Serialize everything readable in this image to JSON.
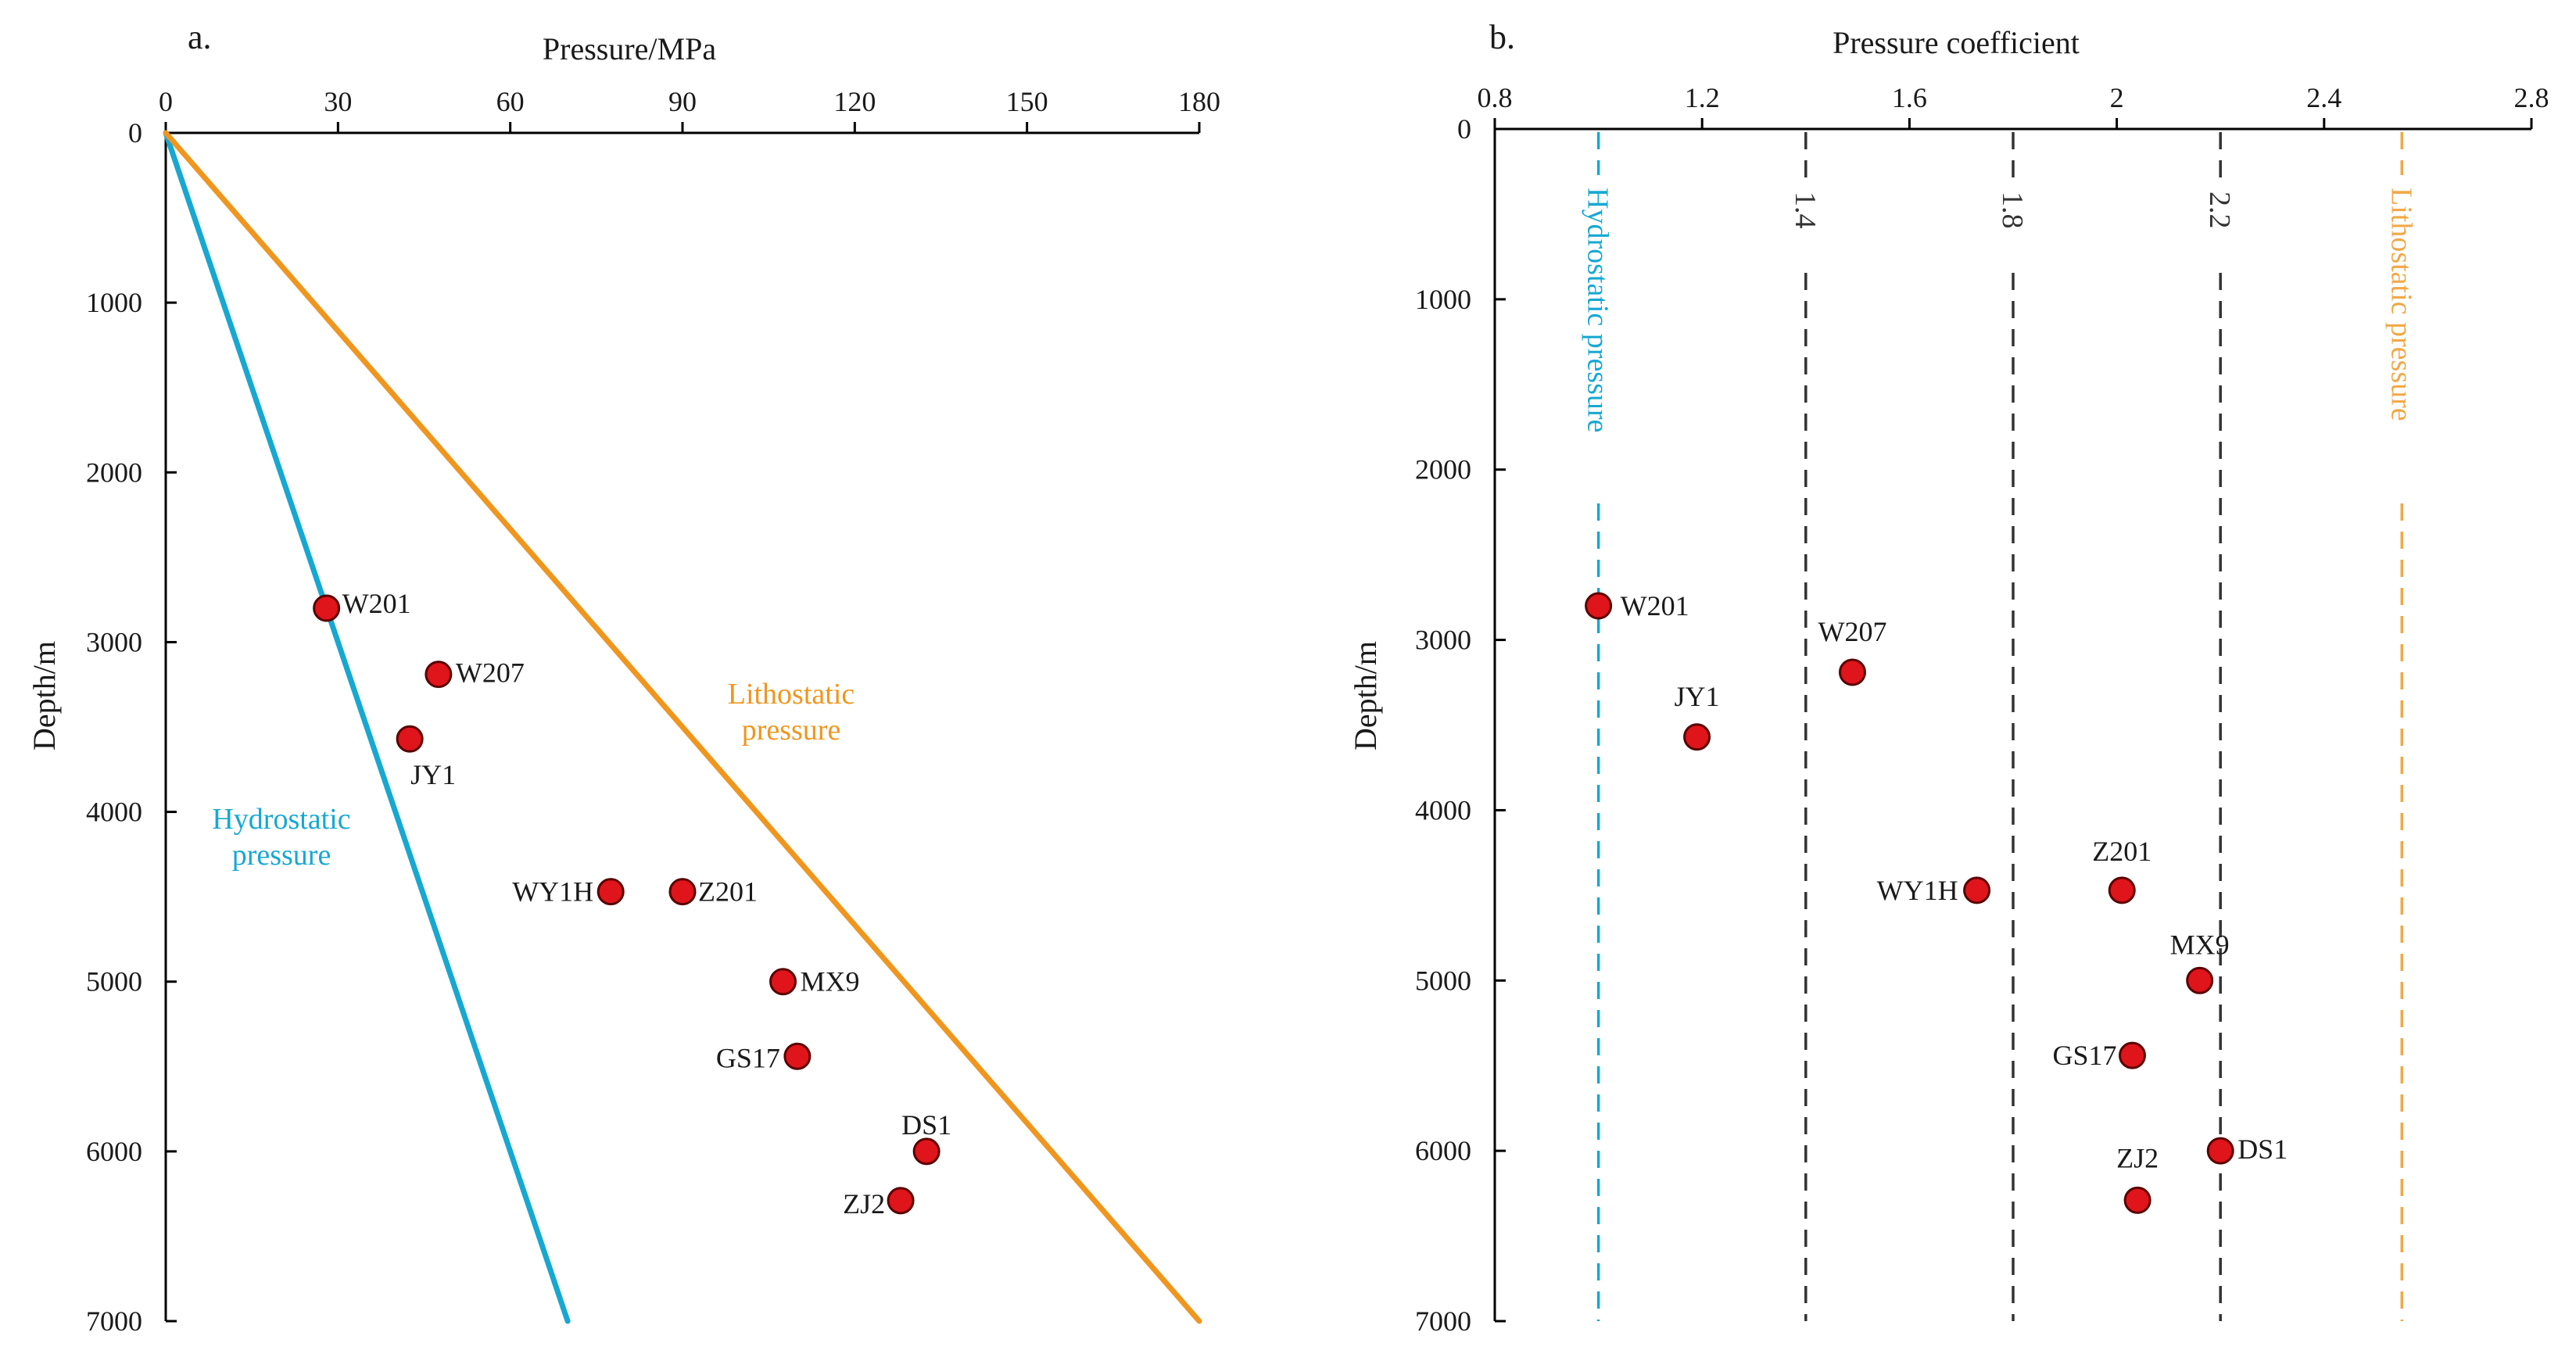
{
  "chart_data": [
    {
      "panel_label": "a.",
      "type": "scatter",
      "xlabel": "Pressure/MPa",
      "ylabel": "Depth/m",
      "xlim": [
        0,
        180
      ],
      "ylim": [
        0,
        7000
      ],
      "x_ticks": [
        0,
        30,
        60,
        90,
        120,
        150,
        180
      ],
      "y_ticks": [
        0,
        1000,
        2000,
        3000,
        4000,
        5000,
        6000,
        7000
      ],
      "reference_lines": [
        {
          "name": "hydrostatic",
          "label_lines": [
            "Hydrostatic",
            "pressure"
          ],
          "color": "#17a8d2",
          "from": [
            0,
            0
          ],
          "to": [
            70,
            7000
          ]
        },
        {
          "name": "lithostatic",
          "label_lines": [
            "Lithostatic",
            "pressure"
          ],
          "color": "#f0961e",
          "from": [
            0,
            0
          ],
          "to": [
            180,
            7000
          ]
        }
      ],
      "points": [
        {
          "name": "W201",
          "x": 28,
          "y": 2800
        },
        {
          "name": "W207",
          "x": 47.5,
          "y": 3190
        },
        {
          "name": "JY1",
          "x": 42.5,
          "y": 3570
        },
        {
          "name": "WY1H",
          "x": 77.5,
          "y": 4470
        },
        {
          "name": "Z201",
          "x": 90,
          "y": 4470
        },
        {
          "name": "MX9",
          "x": 107.5,
          "y": 5000
        },
        {
          "name": "GS17",
          "x": 110,
          "y": 5440
        },
        {
          "name": "DS1",
          "x": 132.5,
          "y": 6000
        },
        {
          "name": "ZJ2",
          "x": 128,
          "y": 6290
        }
      ]
    },
    {
      "panel_label": "b.",
      "type": "scatter",
      "xlabel": "Pressure coefficient",
      "ylabel": "Depth/m",
      "xlim": [
        0.8,
        2.8
      ],
      "ylim": [
        0,
        7000
      ],
      "x_ticks": [
        "0.8",
        "1.2",
        "1.6",
        "2",
        "2.4",
        "2.8"
      ],
      "y_ticks": [
        0,
        1000,
        2000,
        3000,
        4000,
        5000,
        6000,
        7000
      ],
      "reference_lines": [
        {
          "name": "hydrostatic",
          "x": 1.0,
          "label": "Hydrostatic pressure",
          "color": "#17a8d2"
        },
        {
          "name": "coef-1.4",
          "x": 1.4,
          "label": "1.4",
          "color": "#333333"
        },
        {
          "name": "coef-1.8",
          "x": 1.8,
          "label": "1.8",
          "color": "#333333"
        },
        {
          "name": "coef-2.2",
          "x": 2.2,
          "label": "2.2",
          "color": "#333333"
        },
        {
          "name": "lithostatic",
          "x": 2.55,
          "label": "Lithostatic pressure",
          "color": "#f0a848"
        }
      ],
      "points": [
        {
          "name": "W201",
          "x": 1.0,
          "y": 2800
        },
        {
          "name": "W207",
          "x": 1.49,
          "y": 3190
        },
        {
          "name": "JY1",
          "x": 1.19,
          "y": 3570
        },
        {
          "name": "WY1H",
          "x": 1.73,
          "y": 4470
        },
        {
          "name": "Z201",
          "x": 2.01,
          "y": 4470
        },
        {
          "name": "MX9",
          "x": 2.16,
          "y": 5000
        },
        {
          "name": "GS17",
          "x": 2.03,
          "y": 5440
        },
        {
          "name": "DS1",
          "x": 2.2,
          "y": 6000
        },
        {
          "name": "ZJ2",
          "x": 2.04,
          "y": 6290
        }
      ]
    }
  ],
  "colors": {
    "marker_fill": "#e0141b",
    "marker_stroke": "#5a0000",
    "axis": "#000000"
  }
}
